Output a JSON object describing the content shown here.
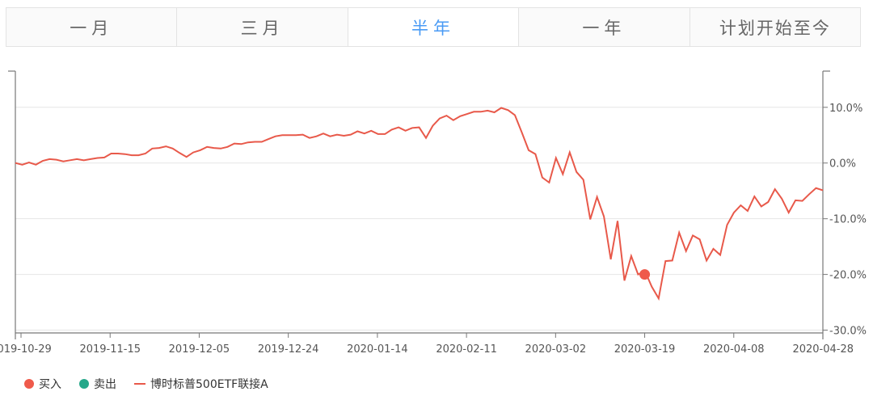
{
  "tabs": [
    {
      "label": "一月",
      "active": false
    },
    {
      "label": "三月",
      "active": false
    },
    {
      "label": "半年",
      "active": true
    },
    {
      "label": "一年",
      "active": false
    },
    {
      "label": "计划开始至今",
      "active": false
    }
  ],
  "legend": {
    "buy_label": "买入",
    "sell_label": "卖出",
    "series_label": "博时标普500ETF联接A",
    "buy_color": "#ef5a4b",
    "sell_color": "#26a88a",
    "line_color": "#e8594a"
  },
  "chart_data": {
    "type": "line",
    "x_tick_labels": [
      "2019-10-29",
      "2019-11-15",
      "2019-12-05",
      "2019-12-24",
      "2020-01-14",
      "2020-02-11",
      "2020-03-02",
      "2020-03-19",
      "2020-04-08",
      "2020-04-28"
    ],
    "y_tick_labels": [
      "10.0%",
      "0.0%",
      "-10.0%",
      "-20.0%",
      "-30.0%"
    ],
    "y_ticks": [
      10,
      0,
      -10,
      -20,
      -30
    ],
    "ylim": [
      -30.5,
      16.5
    ],
    "grid": true,
    "legend_position": "bottom-left",
    "series": [
      {
        "name": "博时标普500ETF联接A",
        "values": [
          0.0,
          -0.3,
          0.1,
          -0.3,
          0.4,
          0.7,
          0.6,
          0.3,
          0.5,
          0.7,
          0.5,
          0.7,
          0.9,
          1.0,
          1.7,
          1.7,
          1.6,
          1.4,
          1.4,
          1.7,
          2.6,
          2.7,
          3.0,
          2.6,
          1.8,
          1.1,
          1.9,
          2.3,
          2.9,
          2.7,
          2.6,
          2.9,
          3.5,
          3.4,
          3.7,
          3.8,
          3.8,
          4.3,
          4.8,
          5.0,
          5.0,
          5.0,
          5.1,
          4.5,
          4.8,
          5.3,
          4.8,
          5.1,
          4.9,
          5.1,
          5.7,
          5.3,
          5.8,
          5.2,
          5.2,
          6.0,
          6.4,
          5.8,
          6.3,
          6.4,
          4.5,
          6.7,
          8.0,
          8.5,
          7.7,
          8.4,
          8.8,
          9.2,
          9.2,
          9.4,
          9.1,
          9.9,
          9.5,
          8.6,
          5.5,
          2.3,
          1.6,
          -2.6,
          -3.5,
          0.9,
          -2.0,
          1.9,
          -1.6,
          -3.0,
          -10.1,
          -6.1,
          -9.6,
          -17.3,
          -10.4,
          -21.1,
          -16.7,
          -20.0,
          -19.4,
          -22.2,
          -24.3,
          -17.6,
          -17.5,
          -12.5,
          -15.8,
          -13.0,
          -13.7,
          -17.5,
          -15.4,
          -16.5,
          -11.1,
          -8.9,
          -7.6,
          -8.6,
          -6.0,
          -7.8,
          -7.0,
          -4.7,
          -6.4,
          -8.9,
          -6.7,
          -6.8,
          -5.6,
          -4.5,
          -4.9
        ]
      }
    ],
    "buy_points": [
      {
        "x": "2020-03-19",
        "y": -20.0
      }
    ],
    "sell_points": []
  }
}
